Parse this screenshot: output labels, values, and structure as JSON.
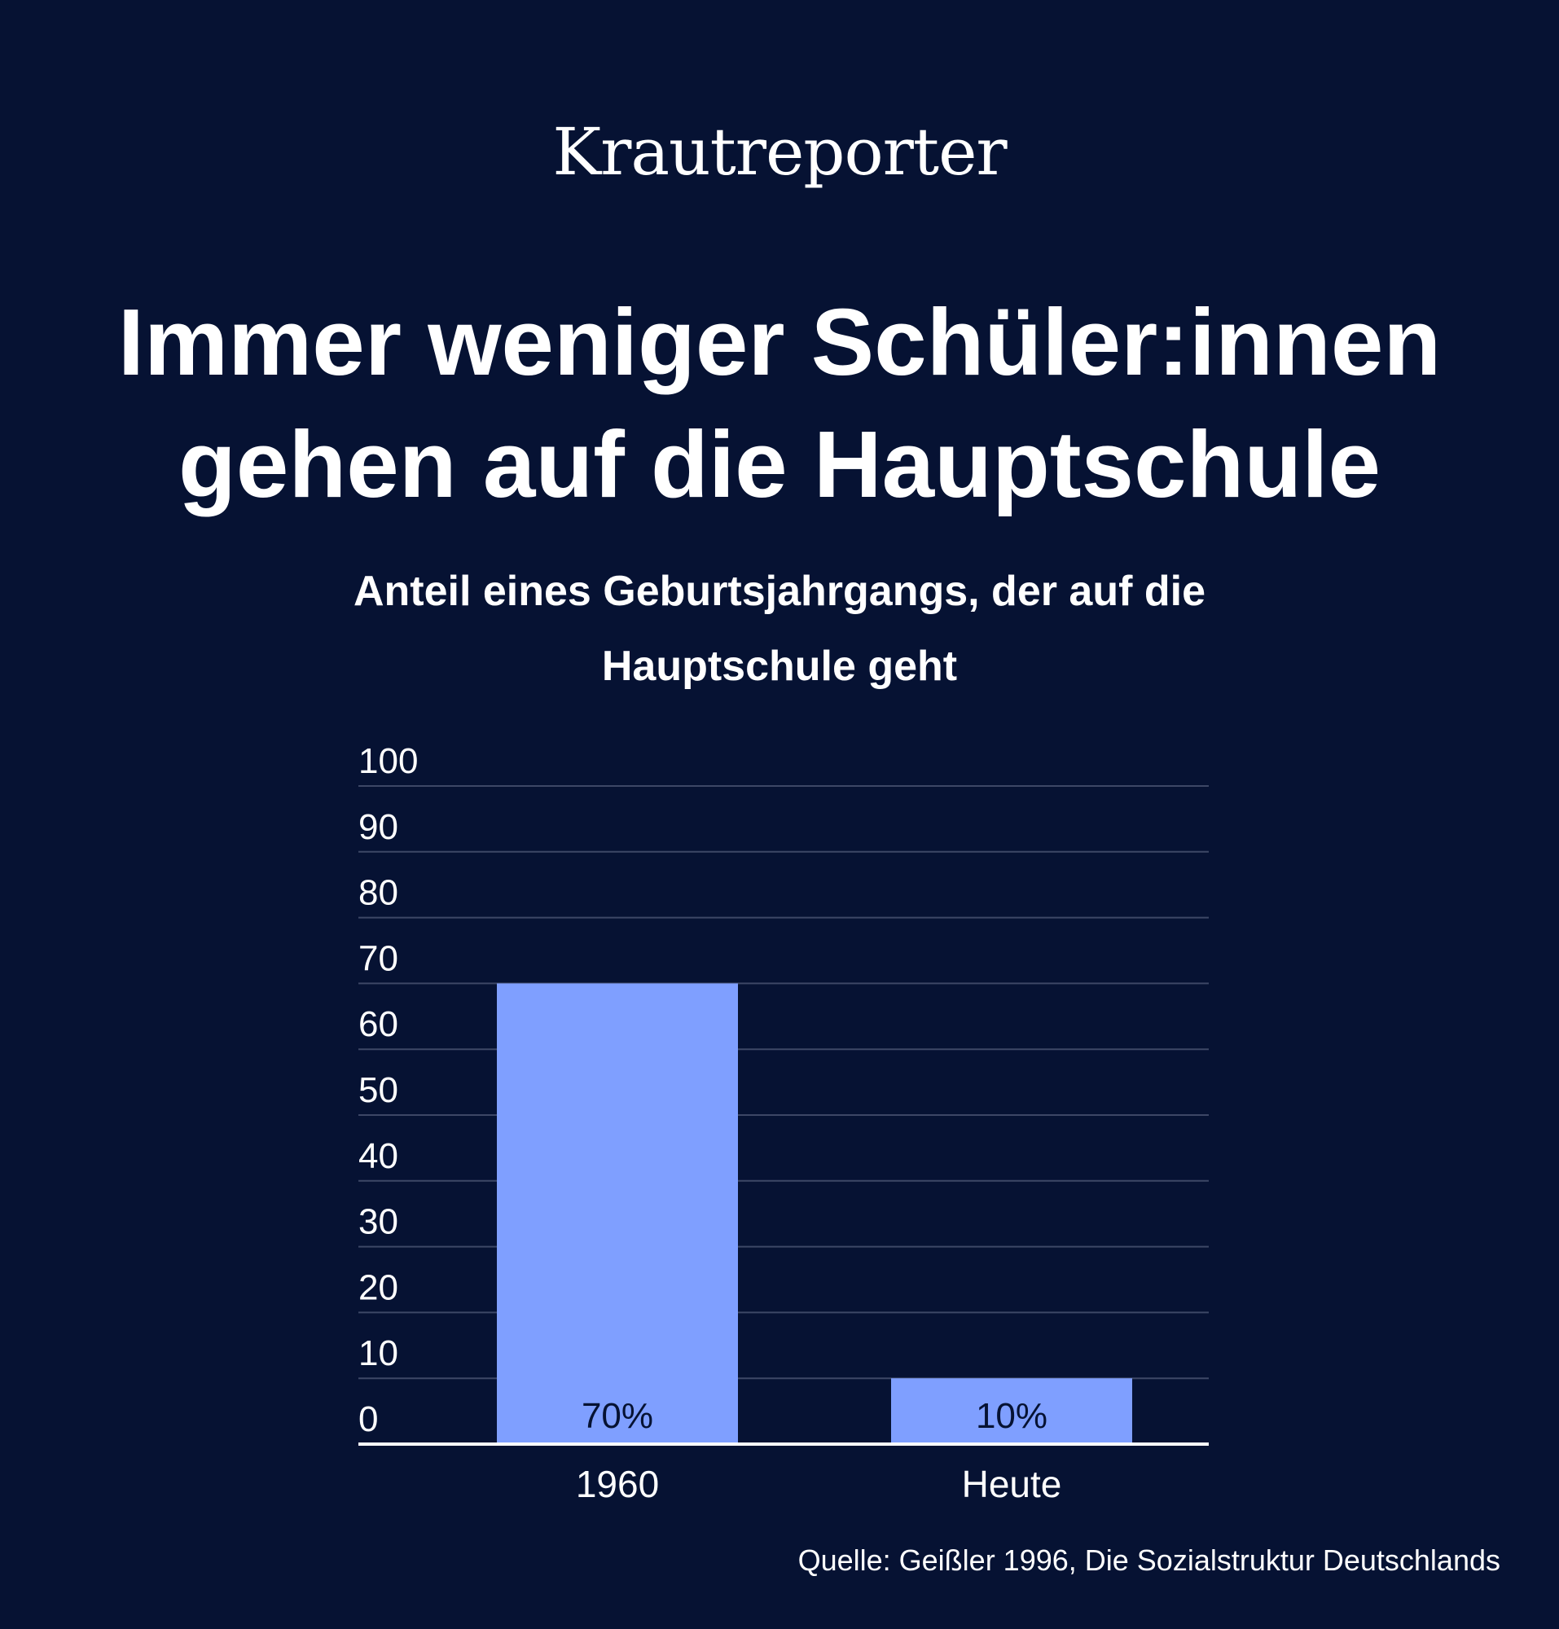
{
  "brand": "Krautreporter",
  "colors": {
    "background": "#061233",
    "bar": "#7f9fff",
    "grid": "#3d4766",
    "axis": "#ffffff",
    "text": "#ffffff"
  },
  "chart_data": {
    "type": "bar",
    "title": [
      "Immer weniger Schüler:innen",
      "gehen auf die Hauptschule"
    ],
    "subtitle": [
      "Anteil eines Geburtsjahrgangs, der auf die",
      "Hauptschule geht"
    ],
    "categories": [
      "1960",
      "Heute"
    ],
    "values": [
      70,
      10
    ],
    "data_labels": [
      "70%",
      "10%"
    ],
    "yticks": [
      0,
      10,
      20,
      30,
      40,
      50,
      60,
      70,
      80,
      90,
      100
    ],
    "ylim": [
      0,
      100
    ],
    "grid": true,
    "legend": "none"
  },
  "source": "Quelle: Geißler 1996, Die Sozialstruktur Deutschlands"
}
